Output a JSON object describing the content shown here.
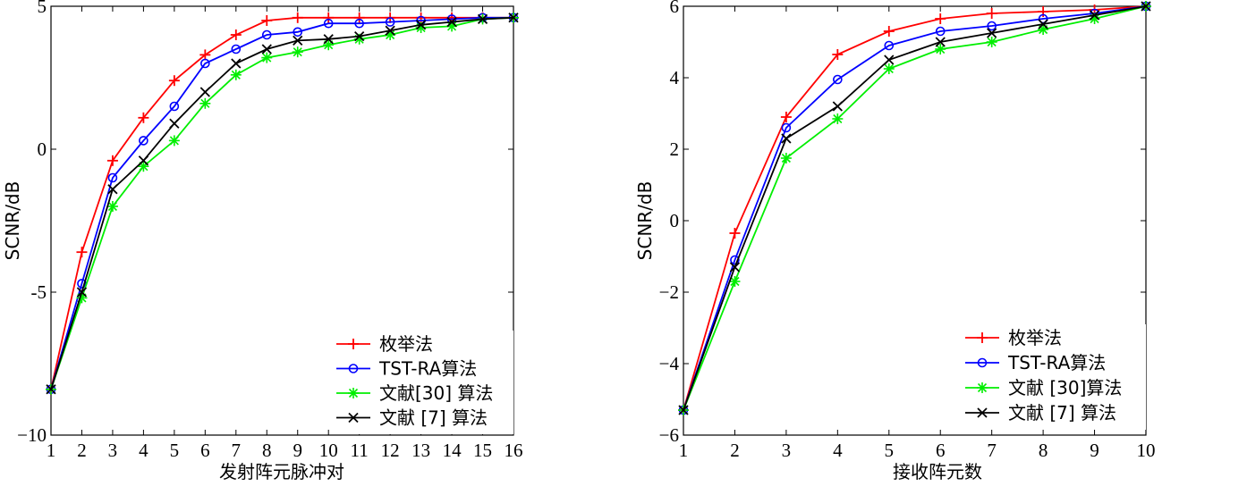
{
  "chart_data": [
    {
      "type": "line",
      "xlabel": "发射阵元脉冲对",
      "ylabel": "SCNR/dB",
      "xlim": [
        1,
        16
      ],
      "ylim": [
        -10,
        5
      ],
      "xticks": [
        1,
        2,
        3,
        4,
        5,
        6,
        7,
        8,
        9,
        10,
        11,
        12,
        13,
        14,
        15,
        16
      ],
      "yticks": [
        -10,
        -5,
        0,
        5
      ],
      "ytick_labels": [
        "−10",
        "-5",
        "0",
        "5"
      ],
      "grid": false,
      "legend_position": "bottom-right",
      "x": [
        1,
        2,
        3,
        4,
        5,
        6,
        7,
        8,
        9,
        10,
        11,
        12,
        13,
        14,
        15,
        16
      ],
      "series": [
        {
          "name": "枚举法",
          "color": "#ff0000",
          "marker": "plus",
          "values": [
            -8.4,
            -3.6,
            -0.4,
            1.1,
            2.4,
            3.3,
            4.0,
            4.5,
            4.6,
            4.6,
            4.6,
            4.6,
            4.6,
            4.6,
            4.6,
            4.6
          ]
        },
        {
          "name": "TST-RA算法",
          "color": "#0000ff",
          "marker": "circle",
          "values": [
            -8.4,
            -4.7,
            -1.0,
            0.3,
            1.5,
            3.0,
            3.5,
            4.0,
            4.1,
            4.4,
            4.4,
            4.45,
            4.5,
            4.55,
            4.6,
            4.6
          ]
        },
        {
          "name": "文献[30] 算法",
          "color": "#00ee00",
          "marker": "asterisk",
          "values": [
            -8.4,
            -5.2,
            -2.0,
            -0.6,
            0.3,
            1.6,
            2.6,
            3.2,
            3.4,
            3.65,
            3.85,
            4.0,
            4.25,
            4.3,
            4.55,
            4.6
          ]
        },
        {
          "name": "文献 [7] 算法",
          "color": "#000000",
          "marker": "x",
          "values": [
            -8.4,
            -5.0,
            -1.4,
            -0.4,
            0.9,
            2.0,
            3.0,
            3.5,
            3.8,
            3.85,
            3.95,
            4.15,
            4.35,
            4.45,
            4.55,
            4.6
          ]
        }
      ]
    },
    {
      "type": "line",
      "xlabel": "接收阵元数",
      "ylabel": "SCNR/dB",
      "xlim": [
        1,
        10
      ],
      "ylim": [
        -6,
        6
      ],
      "xticks": [
        1,
        2,
        3,
        4,
        5,
        6,
        7,
        8,
        9,
        10
      ],
      "yticks": [
        -6,
        -4,
        -2,
        0,
        2,
        4,
        6
      ],
      "ytick_labels": [
        "−6",
        "−4",
        "−2",
        "0",
        "2",
        "4",
        "6"
      ],
      "grid": false,
      "legend_position": "bottom-right",
      "x": [
        1,
        2,
        3,
        4,
        5,
        6,
        7,
        8,
        9,
        10
      ],
      "series": [
        {
          "name": "枚举法",
          "color": "#ff0000",
          "marker": "plus",
          "values": [
            -5.3,
            -0.35,
            2.9,
            4.65,
            5.3,
            5.65,
            5.8,
            5.85,
            5.9,
            6.0
          ]
        },
        {
          "name": "TST-RA算法",
          "color": "#0000ff",
          "marker": "circle",
          "values": [
            -5.3,
            -1.1,
            2.6,
            3.95,
            4.9,
            5.3,
            5.45,
            5.65,
            5.8,
            6.0
          ]
        },
        {
          "name": "文献 [30]算法",
          "color": "#00ee00",
          "marker": "asterisk",
          "values": [
            -5.3,
            -1.7,
            1.75,
            2.85,
            4.25,
            4.8,
            5.0,
            5.35,
            5.65,
            6.0
          ]
        },
        {
          "name": "文献 [7] 算法",
          "color": "#000000",
          "marker": "x",
          "values": [
            -5.3,
            -1.3,
            2.3,
            3.2,
            4.5,
            5.0,
            5.25,
            5.5,
            5.75,
            6.0
          ]
        }
      ]
    }
  ]
}
